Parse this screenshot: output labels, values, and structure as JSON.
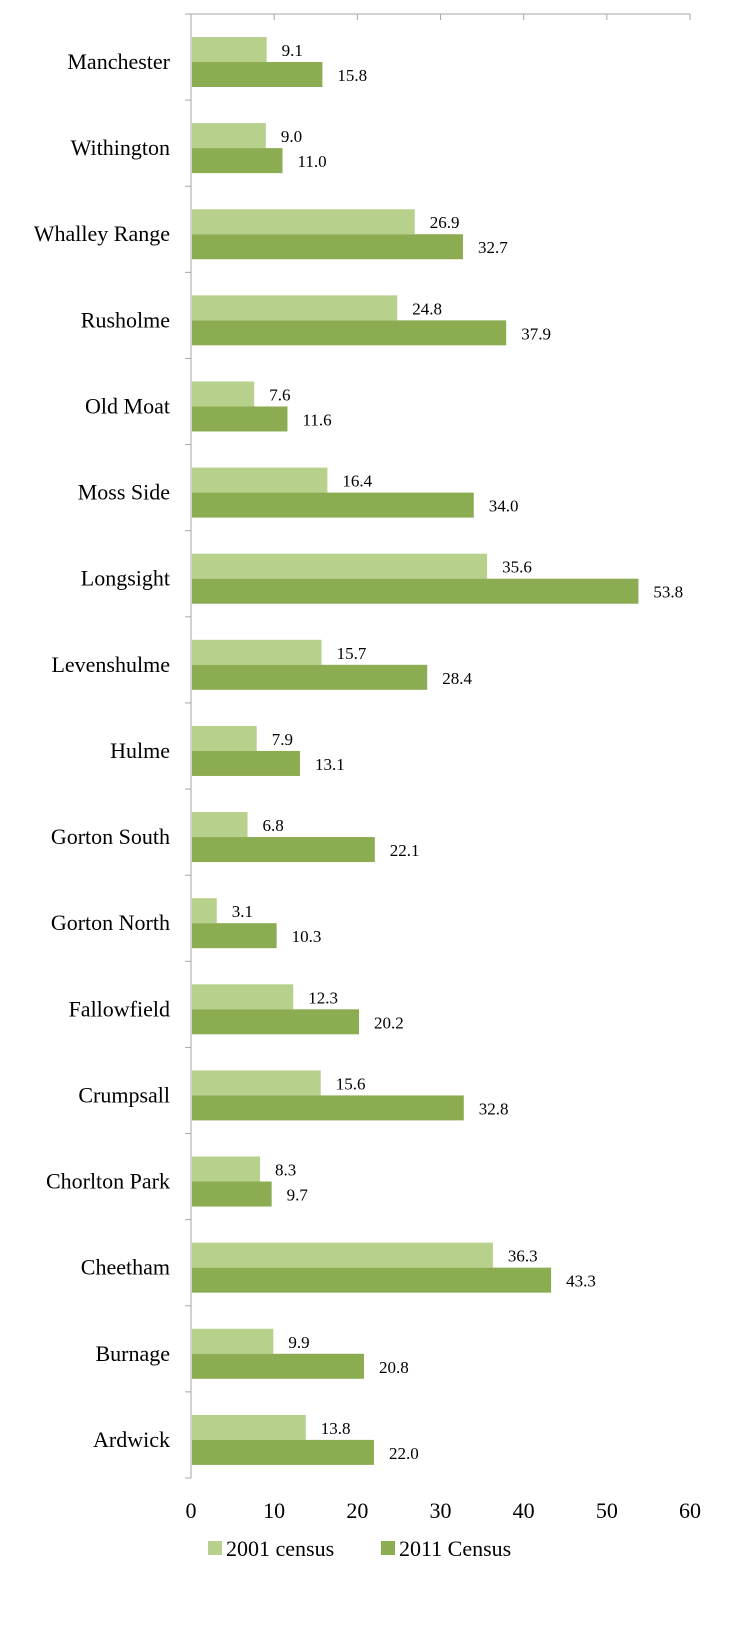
{
  "chart_data": {
    "type": "bar",
    "orientation": "horizontal",
    "categories": [
      "Manchester",
      "Withington",
      "Whalley Range",
      "Rusholme",
      "Old Moat",
      "Moss Side",
      "Longsight",
      "Levenshulme",
      "Hulme",
      "Gorton South",
      "Gorton North",
      "Fallowfield",
      "Crumpsall",
      "Chorlton Park",
      "Cheetham",
      "Burnage",
      "Ardwick"
    ],
    "series": [
      {
        "name": "2001 census",
        "color": "#b7d08b",
        "values": [
          9.1,
          9.0,
          26.9,
          24.8,
          7.6,
          16.4,
          35.6,
          15.7,
          7.9,
          6.8,
          3.1,
          12.3,
          15.6,
          8.3,
          36.3,
          9.9,
          13.8
        ],
        "labels": [
          "9.1",
          "9.0",
          "26.9",
          "24.8",
          "7.6",
          "16.4",
          "35.6",
          "15.7",
          "7.9",
          "6.8",
          "3.1",
          "12.3",
          "15.6",
          "8.3",
          "36.3",
          "9.9",
          "13.8"
        ]
      },
      {
        "name": "2011 Census",
        "color": "#8cac52",
        "values": [
          15.8,
          11.0,
          32.7,
          37.9,
          11.6,
          34.0,
          53.8,
          28.4,
          13.1,
          22.1,
          10.3,
          20.2,
          32.8,
          9.7,
          43.3,
          20.8,
          22.0
        ],
        "labels": [
          "15.8",
          "11.0",
          "32.7",
          "37.9",
          "11.6",
          "34.0",
          "53.8",
          "28.4",
          "13.1",
          "22.1",
          "10.3",
          "20.2",
          "32.8",
          "9.7",
          "43.3",
          "20.8",
          "22.0"
        ]
      }
    ],
    "xlim": [
      0,
      60
    ],
    "xticks": [
      0,
      10,
      20,
      30,
      40,
      50,
      60
    ],
    "xtick_labels": [
      "0",
      "10",
      "20",
      "30",
      "40",
      "50",
      "60"
    ],
    "grid": false,
    "legend_position": "bottom"
  }
}
